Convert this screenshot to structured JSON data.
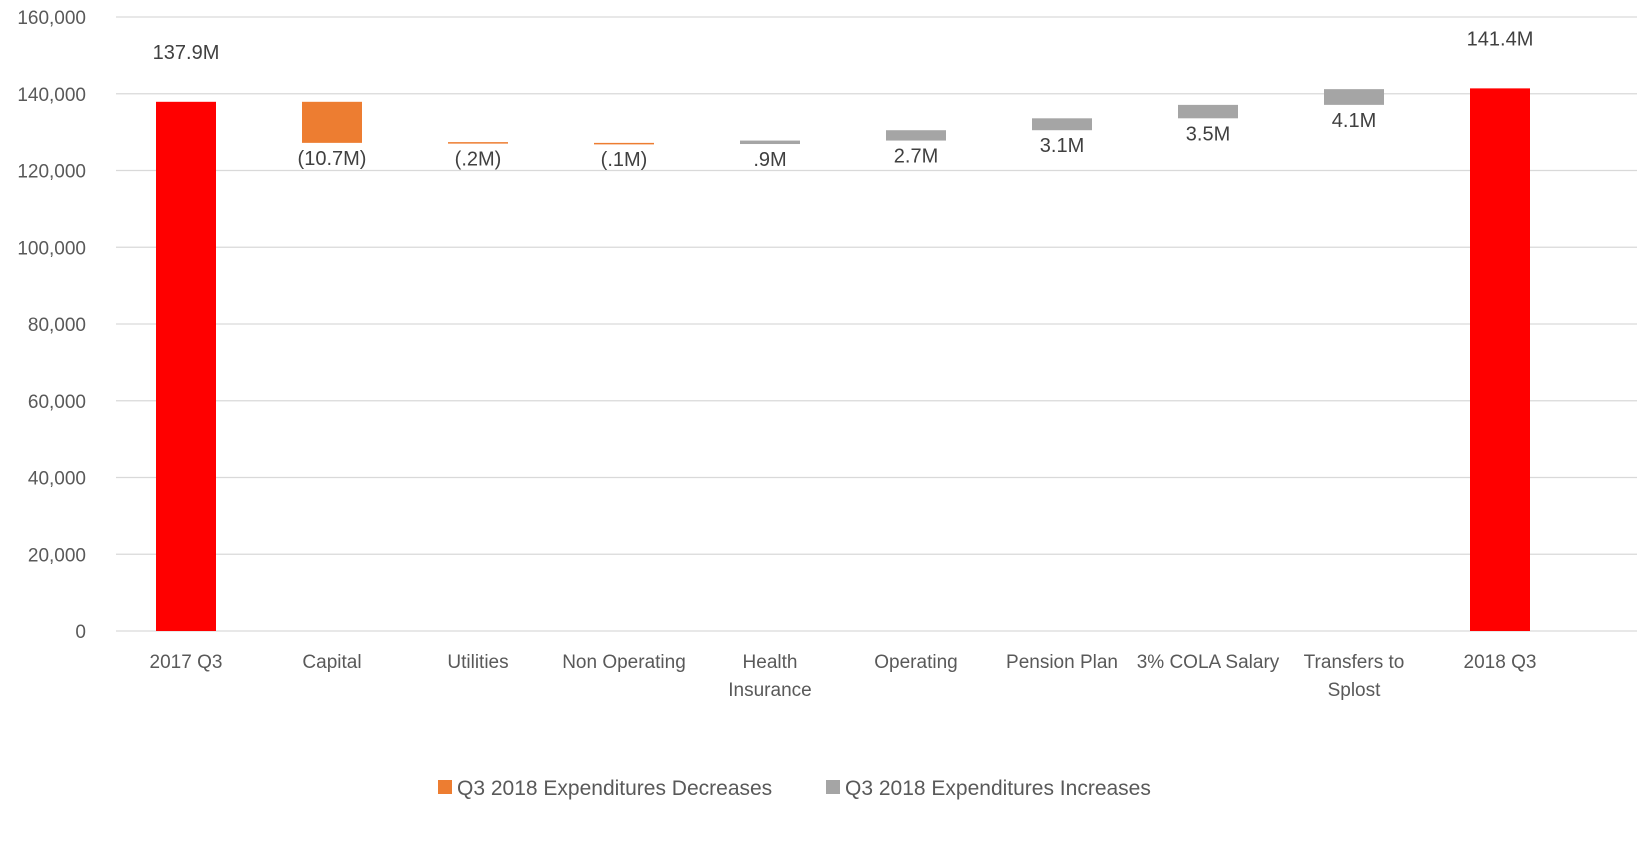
{
  "chart_data": {
    "type": "bar",
    "subtype": "waterfall",
    "title": "",
    "xlabel": "",
    "ylabel": "",
    "ylim": [
      0,
      160000
    ],
    "yticks": [
      0,
      20000,
      40000,
      60000,
      80000,
      100000,
      120000,
      140000,
      160000
    ],
    "ytick_labels": [
      "0",
      "20,000",
      "40,000",
      "60,000",
      "80,000",
      "100,000",
      "120,000",
      "140,000",
      "160,000"
    ],
    "grid": true,
    "legend_position": "bottom",
    "categories": [
      [
        "2017 Q3"
      ],
      [
        "Capital"
      ],
      [
        "Utilities"
      ],
      [
        "Non Operating"
      ],
      [
        "Health",
        "Insurance"
      ],
      [
        "Operating"
      ],
      [
        "Pension Plan"
      ],
      [
        "3% COLA Salary"
      ],
      [
        "Transfers to",
        "Splost"
      ],
      [
        "2018 Q3"
      ]
    ],
    "bars": [
      {
        "kind": "total",
        "bottom": 0,
        "top": 137900,
        "label": "137.9M"
      },
      {
        "kind": "decrease",
        "bottom": 127200,
        "top": 137900,
        "label": "(10.7M)"
      },
      {
        "kind": "decrease",
        "bottom": 127000,
        "top": 127200,
        "label": "(.2M)"
      },
      {
        "kind": "decrease",
        "bottom": 126900,
        "top": 127000,
        "label": "(.1M)"
      },
      {
        "kind": "increase",
        "bottom": 126900,
        "top": 127800,
        "label": ".9M"
      },
      {
        "kind": "increase",
        "bottom": 127800,
        "top": 130500,
        "label": "2.7M"
      },
      {
        "kind": "increase",
        "bottom": 130500,
        "top": 133600,
        "label": "3.1M"
      },
      {
        "kind": "increase",
        "bottom": 133600,
        "top": 137100,
        "label": "3.5M"
      },
      {
        "kind": "increase",
        "bottom": 137100,
        "top": 141200,
        "label": "4.1M"
      },
      {
        "kind": "total",
        "bottom": 0,
        "top": 141400,
        "label": "141.4M"
      }
    ],
    "series": [
      {
        "name": "Q3 2018 Expenditures Decreases",
        "color": "#ed7d31"
      },
      {
        "name": "Q3 2018 Expenditures Increases",
        "color": "#a5a5a5"
      }
    ],
    "total_color": "#ff0000"
  }
}
